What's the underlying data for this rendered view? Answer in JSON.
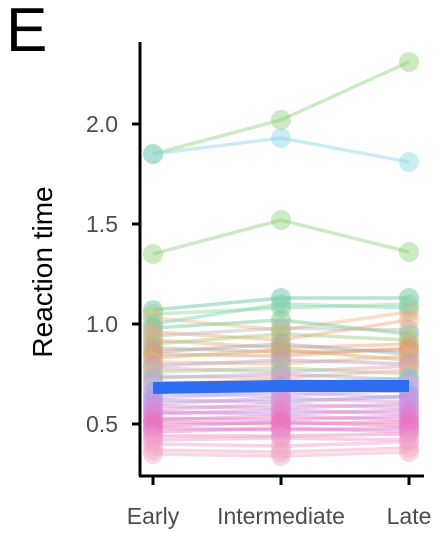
{
  "panel_label": "E",
  "chart_data": {
    "type": "line",
    "title": "",
    "xlabel": "",
    "ylabel": "Reaction time",
    "categories": [
      "Early",
      "Intermediate",
      "Late"
    ],
    "yticks": [
      "0.5",
      "1.0",
      "1.5",
      "2.0"
    ],
    "ylim": [
      0.3,
      2.4
    ],
    "grid": false,
    "legend": "none",
    "mean_line": {
      "values": [
        0.68,
        0.69,
        0.69
      ],
      "color": "#2e6df0"
    },
    "series": [
      {
        "values": [
          1.85,
          2.02,
          2.31
        ],
        "color": "#8fd17a"
      },
      {
        "values": [
          1.85,
          1.93,
          1.81
        ],
        "color": "#8fd4e8"
      },
      {
        "values": [
          1.35,
          1.52,
          1.36
        ],
        "color": "#8fd17a"
      },
      {
        "values": [
          1.07,
          1.13,
          1.13
        ],
        "color": "#5fc0a0"
      },
      {
        "values": [
          1.05,
          1.08,
          1.1
        ],
        "color": "#90d890"
      },
      {
        "values": [
          1.03,
          0.97,
          1.06
        ],
        "color": "#f2b585"
      },
      {
        "values": [
          1.0,
          1.1,
          1.08
        ],
        "color": "#7fd0b8"
      },
      {
        "values": [
          0.98,
          1.02,
          0.95
        ],
        "color": "#6ec88a"
      },
      {
        "values": [
          0.96,
          0.92,
          1.02
        ],
        "color": "#f0a878"
      },
      {
        "values": [
          0.94,
          0.98,
          0.97
        ],
        "color": "#b8b8b8"
      },
      {
        "values": [
          0.92,
          0.88,
          0.9
        ],
        "color": "#e9a37a"
      },
      {
        "values": [
          0.9,
          0.95,
          0.92
        ],
        "color": "#a0c878"
      },
      {
        "values": [
          0.88,
          0.86,
          0.87
        ],
        "color": "#d9a080"
      },
      {
        "values": [
          0.86,
          0.9,
          0.85
        ],
        "color": "#9aa8b0"
      },
      {
        "values": [
          0.85,
          0.84,
          0.88
        ],
        "color": "#e8946a"
      },
      {
        "values": [
          0.83,
          0.87,
          0.82
        ],
        "color": "#c8b070"
      },
      {
        "values": [
          0.81,
          0.8,
          0.84
        ],
        "color": "#f2b07c"
      },
      {
        "values": [
          0.79,
          0.82,
          0.8
        ],
        "color": "#b0a0c8"
      },
      {
        "values": [
          0.78,
          0.76,
          0.79
        ],
        "color": "#e4a0a8"
      },
      {
        "values": [
          0.76,
          0.78,
          0.75
        ],
        "color": "#9fd0a0"
      },
      {
        "values": [
          0.74,
          0.73,
          0.77
        ],
        "color": "#f0b090"
      },
      {
        "values": [
          0.73,
          0.75,
          0.72
        ],
        "color": "#a8a8d8"
      },
      {
        "values": [
          0.71,
          0.7,
          0.73
        ],
        "color": "#80c8d0"
      },
      {
        "values": [
          0.7,
          0.72,
          0.7
        ],
        "color": "#e8a0c0"
      },
      {
        "values": [
          0.68,
          0.67,
          0.69
        ],
        "color": "#c0c0e8"
      },
      {
        "values": [
          0.66,
          0.69,
          0.66
        ],
        "color": "#a0a0e0"
      },
      {
        "values": [
          0.65,
          0.64,
          0.67
        ],
        "color": "#b0b0f0"
      },
      {
        "values": [
          0.63,
          0.66,
          0.63
        ],
        "color": "#d0a0e8"
      },
      {
        "values": [
          0.62,
          0.61,
          0.64
        ],
        "color": "#9898e0"
      },
      {
        "values": [
          0.6,
          0.63,
          0.61
        ],
        "color": "#e090d0"
      },
      {
        "values": [
          0.59,
          0.58,
          0.6
        ],
        "color": "#c090e8"
      },
      {
        "values": [
          0.57,
          0.6,
          0.58
        ],
        "color": "#f090c8"
      },
      {
        "values": [
          0.56,
          0.55,
          0.57
        ],
        "color": "#b090f0"
      },
      {
        "values": [
          0.55,
          0.57,
          0.55
        ],
        "color": "#e880c8"
      },
      {
        "values": [
          0.53,
          0.52,
          0.54
        ],
        "color": "#d080e0"
      },
      {
        "values": [
          0.52,
          0.54,
          0.52
        ],
        "color": "#f080b8"
      },
      {
        "values": [
          0.51,
          0.5,
          0.51
        ],
        "color": "#e070c8"
      },
      {
        "values": [
          0.49,
          0.51,
          0.49
        ],
        "color": "#f070b0"
      },
      {
        "values": [
          0.48,
          0.47,
          0.48
        ],
        "color": "#d878d8"
      },
      {
        "values": [
          0.46,
          0.48,
          0.46
        ],
        "color": "#f078c0"
      },
      {
        "values": [
          0.44,
          0.44,
          0.45
        ],
        "color": "#e888c8"
      },
      {
        "values": [
          0.42,
          0.43,
          0.42
        ],
        "color": "#f098c8"
      },
      {
        "values": [
          0.4,
          0.39,
          0.41
        ],
        "color": "#f0a0d0"
      },
      {
        "values": [
          0.37,
          0.36,
          0.38
        ],
        "color": "#f5a0c0"
      },
      {
        "values": [
          0.35,
          0.34,
          0.36
        ],
        "color": "#f2a8c8"
      }
    ]
  }
}
